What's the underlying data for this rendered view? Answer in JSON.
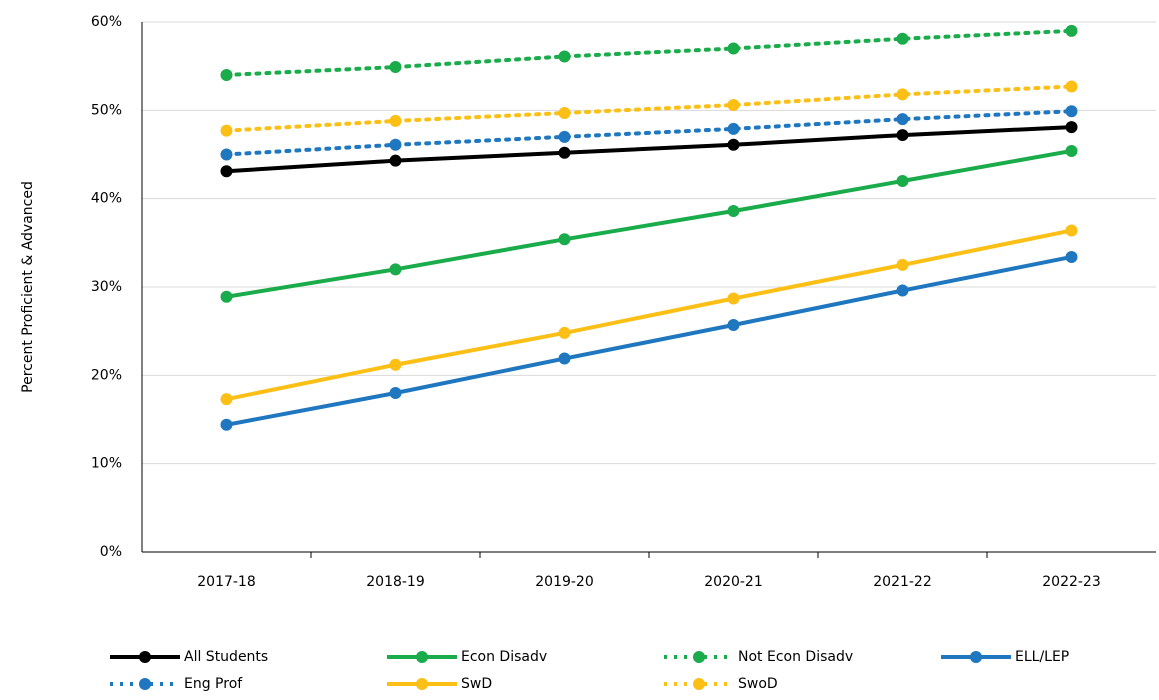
{
  "chart_data": {
    "type": "line",
    "y_label": "Percent Proficient & Advanced",
    "categories": [
      "2017-18",
      "2018-19",
      "2019-20",
      "2020-21",
      "2021-22",
      "2022-23"
    ],
    "series": [
      {
        "name": "All Students",
        "color": "#000000",
        "style": "solid",
        "values": [
          43.1,
          44.3,
          45.2,
          46.1,
          47.2,
          48.1
        ]
      },
      {
        "name": "Econ Disadv",
        "color": "#1aab4b",
        "style": "solid",
        "values": [
          28.9,
          32.0,
          35.4,
          38.6,
          42.0,
          45.4
        ]
      },
      {
        "name": "Not Econ Disadv",
        "color": "#1aab4b",
        "style": "dotted",
        "values": [
          54.0,
          54.9,
          56.1,
          57.0,
          58.1,
          59.0
        ]
      },
      {
        "name": "ELL/LEP",
        "color": "#1f77c0",
        "style": "solid",
        "values": [
          14.4,
          18.0,
          21.9,
          25.7,
          29.6,
          33.4
        ]
      },
      {
        "name": "Eng Prof",
        "color": "#1f77c0",
        "style": "dotted",
        "values": [
          45.0,
          46.1,
          47.0,
          47.9,
          49.0,
          49.9
        ]
      },
      {
        "name": "SwD",
        "color": "#fbbf16",
        "style": "solid",
        "values": [
          17.3,
          21.2,
          24.8,
          28.7,
          32.5,
          36.4
        ]
      },
      {
        "name": "SwoD",
        "color": "#fbbf16",
        "style": "dotted",
        "values": [
          47.7,
          48.8,
          49.7,
          50.6,
          51.8,
          52.7
        ]
      }
    ],
    "ylim": [
      0,
      60
    ],
    "yticks": [
      {
        "value": 0,
        "label": "0%"
      },
      {
        "value": 10,
        "label": "10%"
      },
      {
        "value": 20,
        "label": "20%"
      },
      {
        "value": 30,
        "label": "30%"
      },
      {
        "value": 40,
        "label": "40%"
      },
      {
        "value": 50,
        "label": "50%"
      },
      {
        "value": 60,
        "label": "60%"
      }
    ],
    "grid": true,
    "legend": "bottom"
  }
}
